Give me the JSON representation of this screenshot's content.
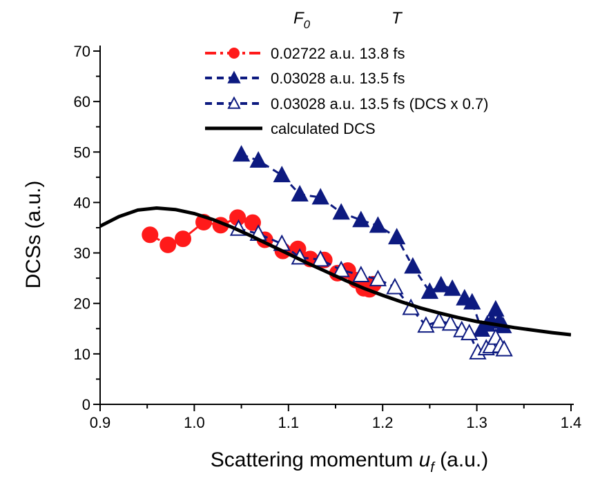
{
  "chart_data": {
    "type": "scatter",
    "xlabel": "Scattering momentum",
    "xlabel_var": "u",
    "xlabel_sub": "f",
    "xlabel_unit": "(a.u.)",
    "ylabel": "DCSs (a.u.)",
    "xlim": [
      0.9,
      1.4
    ],
    "ylim": [
      0,
      70
    ],
    "xticks": [
      "0.9",
      "1.0",
      "1.1",
      "1.2",
      "1.3",
      "1.4"
    ],
    "yticks": [
      "0",
      "10",
      "20",
      "30",
      "40",
      "50",
      "60",
      "70"
    ],
    "legend_headers": {
      "f0": "F",
      "f0_sub": "0",
      "t": "T"
    },
    "legend_position": "top-right",
    "grid": false,
    "series": [
      {
        "name": "0.02722 a.u. 13.8 fs",
        "marker": "circle",
        "filled": true,
        "color": "#ff1a1a",
        "line": "dash-dot",
        "points": [
          [
            0.953,
            33.6
          ],
          [
            0.972,
            31.6
          ],
          [
            0.988,
            32.8
          ],
          [
            1.01,
            36.1
          ],
          [
            1.028,
            35.5
          ],
          [
            1.046,
            37.0
          ],
          [
            1.062,
            36.0
          ],
          [
            1.075,
            32.6
          ],
          [
            1.094,
            30.4
          ],
          [
            1.11,
            30.8
          ],
          [
            1.123,
            28.8
          ],
          [
            1.138,
            28.6
          ],
          [
            1.152,
            26.0
          ],
          [
            1.163,
            26.5
          ],
          [
            1.172,
            24.6
          ],
          [
            1.18,
            23.0
          ],
          [
            1.186,
            22.8
          ],
          [
            1.19,
            23.8
          ]
        ]
      },
      {
        "name": "0.03028 a.u. 13.5 fs",
        "marker": "triangle",
        "filled": true,
        "color": "#0d1a80",
        "line": "dashed",
        "points": [
          [
            1.05,
            49.5
          ],
          [
            1.068,
            48.3
          ],
          [
            1.093,
            45.4
          ],
          [
            1.112,
            41.6
          ],
          [
            1.134,
            41.0
          ],
          [
            1.156,
            38.0
          ],
          [
            1.177,
            36.5
          ],
          [
            1.195,
            35.4
          ],
          [
            1.215,
            33.1
          ],
          [
            1.232,
            27.3
          ],
          [
            1.25,
            22.3
          ],
          [
            1.262,
            23.6
          ],
          [
            1.274,
            22.9
          ],
          [
            1.287,
            21.0
          ],
          [
            1.295,
            20.2
          ],
          [
            1.305,
            14.8
          ],
          [
            1.311,
            15.8
          ],
          [
            1.316,
            16.4
          ],
          [
            1.32,
            18.8
          ],
          [
            1.324,
            16.5
          ],
          [
            1.328,
            15.5
          ]
        ]
      },
      {
        "name": "0.03028 a.u. 13.5 fs (DCS x 0.7)",
        "marker": "triangle",
        "filled": false,
        "color": "#0d1a80",
        "line": "dashed",
        "points": [
          [
            1.047,
            34.8
          ],
          [
            1.068,
            33.8
          ],
          [
            1.093,
            31.8
          ],
          [
            1.112,
            29.1
          ],
          [
            1.134,
            28.7
          ],
          [
            1.156,
            26.6
          ],
          [
            1.177,
            25.6
          ],
          [
            1.195,
            24.8
          ],
          [
            1.213,
            23.2
          ],
          [
            1.23,
            19.1
          ],
          [
            1.246,
            15.6
          ],
          [
            1.26,
            16.5
          ],
          [
            1.272,
            16.0
          ],
          [
            1.284,
            14.7
          ],
          [
            1.292,
            14.1
          ],
          [
            1.301,
            10.3
          ],
          [
            1.31,
            11.1
          ],
          [
            1.315,
            11.5
          ],
          [
            1.32,
            13.2
          ],
          [
            1.325,
            11.6
          ],
          [
            1.329,
            10.9
          ]
        ]
      },
      {
        "name": "calculated DCS",
        "marker": "none",
        "filled": false,
        "color": "#000000",
        "line": "solid",
        "points": [
          [
            0.9,
            35.3
          ],
          [
            0.92,
            37.2
          ],
          [
            0.94,
            38.5
          ],
          [
            0.96,
            38.9
          ],
          [
            0.98,
            38.6
          ],
          [
            1.0,
            37.8
          ],
          [
            1.02,
            36.6
          ],
          [
            1.04,
            35.1
          ],
          [
            1.06,
            33.4
          ],
          [
            1.08,
            31.6
          ],
          [
            1.1,
            29.8
          ],
          [
            1.12,
            28.0
          ],
          [
            1.14,
            26.3
          ],
          [
            1.16,
            24.6
          ],
          [
            1.18,
            23.0
          ],
          [
            1.2,
            21.6
          ],
          [
            1.22,
            20.3
          ],
          [
            1.24,
            19.1
          ],
          [
            1.26,
            18.1
          ],
          [
            1.28,
            17.2
          ],
          [
            1.3,
            16.4
          ],
          [
            1.32,
            15.8
          ],
          [
            1.34,
            15.2
          ],
          [
            1.36,
            14.7
          ],
          [
            1.38,
            14.2
          ],
          [
            1.4,
            13.8
          ]
        ]
      }
    ]
  }
}
